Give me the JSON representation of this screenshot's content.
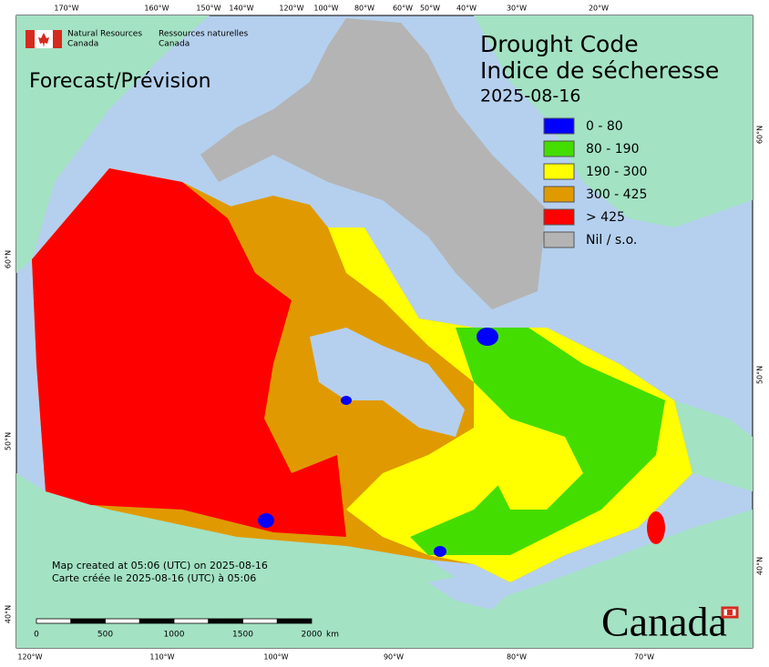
{
  "header": {
    "agency_en": [
      "Natural Resources",
      "Canada"
    ],
    "agency_fr": [
      "Ressources naturelles",
      "Canada"
    ]
  },
  "forecast_label": "Forecast/Prévision",
  "title": [
    "Drought Code",
    "Indice de sécheresse"
  ],
  "date": "2025-08-16",
  "legend": [
    {
      "label": "0 - 80",
      "color": "#0000ff"
    },
    {
      "label": "80 - 190",
      "color": "#44dd00"
    },
    {
      "label": "190 - 300",
      "color": "#ffff00"
    },
    {
      "label": "300 - 425",
      "color": "#e09a00"
    },
    {
      "label": "> 425",
      "color": "#ff0000"
    },
    {
      "label": "Nil / s.o.",
      "color": "#b4b4b4"
    }
  ],
  "top_axis": [
    "170°W",
    "160°W",
    "150°W",
    "140°W",
    "120°W",
    "100°W",
    "80°W",
    "60°W",
    "50°W",
    "40°W",
    "30°W",
    "20°W"
  ],
  "bottom_axis": [
    "120°W",
    "110°W",
    "100°W",
    "90°W",
    "80°W",
    "70°W"
  ],
  "left_axis": [
    "60°N",
    "50°N",
    "40°N"
  ],
  "right_axis": [
    "60°N",
    "50°N",
    "40°N"
  ],
  "notes": [
    "Map created at 05:06 (UTC) on 2025-08-16",
    "Carte créée le 2025-08-16 (UTC) à 05:06"
  ],
  "scale_bar": {
    "ticks": [
      0,
      500,
      1000,
      1500,
      2000
    ],
    "unit": "km"
  },
  "wordmark": "Canada"
}
